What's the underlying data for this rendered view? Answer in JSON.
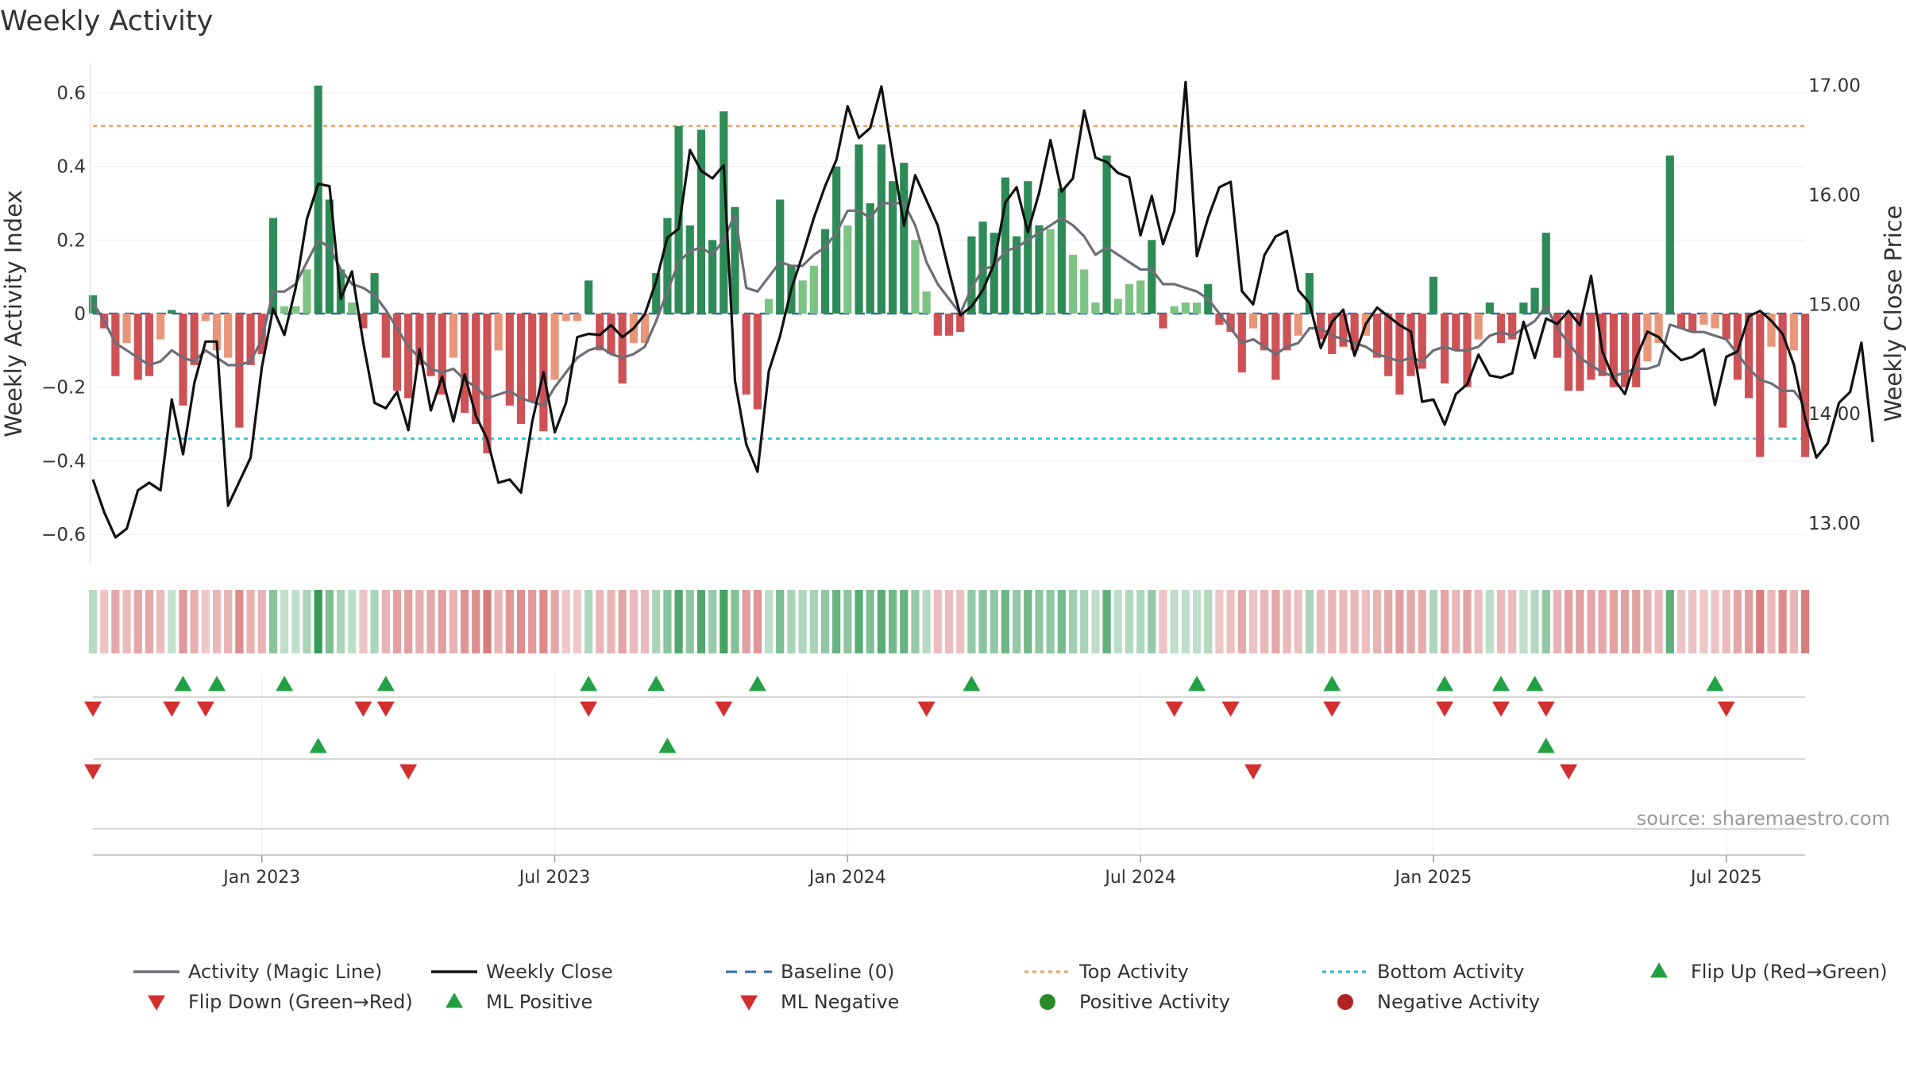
{
  "chart_data": {
    "type": "bar",
    "title": "Weekly Activity",
    "ylabel": "Weekly Activity Index",
    "y2label": "Weekly Close Price",
    "ylim": [
      -0.68,
      0.68
    ],
    "y2lim": [
      12.63,
      17.2
    ],
    "yticks": [
      {
        "value": 0.6,
        "label": "0.6"
      },
      {
        "value": 0.4,
        "label": "0.4"
      },
      {
        "value": 0.2,
        "label": "0.2"
      },
      {
        "value": 0,
        "label": "0"
      },
      {
        "value": -0.2,
        "label": "−0.2"
      },
      {
        "value": -0.4,
        "label": "−0.4"
      },
      {
        "value": -0.6,
        "label": "−0.6"
      }
    ],
    "y2ticks": [
      {
        "value": 17,
        "label": "17.00"
      },
      {
        "value": 16,
        "label": "16.00"
      },
      {
        "value": 15,
        "label": "15.00"
      },
      {
        "value": 14,
        "label": "14.00"
      },
      {
        "value": 13,
        "label": "13.00"
      }
    ],
    "xticks": [
      {
        "week": 15,
        "label": "Jan 2023"
      },
      {
        "week": 41,
        "label": "Jul 2023"
      },
      {
        "week": 67,
        "label": "Jan 2024"
      },
      {
        "week": 93,
        "label": "Jul 2024"
      },
      {
        "week": 119,
        "label": "Jan 2025"
      },
      {
        "week": 145,
        "label": "Jul 2025"
      }
    ],
    "top_activity": 0.51,
    "bottom_activity": -0.34,
    "baseline": 0,
    "activity": [
      0.05,
      -0.04,
      -0.17,
      -0.08,
      -0.18,
      -0.17,
      -0.07,
      0.01,
      -0.25,
      -0.14,
      -0.02,
      -0.1,
      -0.12,
      -0.31,
      -0.14,
      -0.11,
      0.26,
      0.02,
      0.02,
      0.12,
      0.62,
      0.31,
      0.12,
      0.03,
      -0.04,
      0.11,
      -0.12,
      -0.21,
      -0.23,
      -0.14,
      -0.17,
      -0.22,
      -0.12,
      -0.27,
      -0.3,
      -0.38,
      -0.1,
      -0.25,
      -0.3,
      -0.24,
      -0.32,
      -0.18,
      -0.02,
      -0.02,
      0.09,
      -0.1,
      -0.11,
      -0.19,
      -0.08,
      -0.08,
      0.11,
      0.26,
      0.51,
      0.24,
      0.5,
      0.2,
      0.55,
      0.29,
      -0.22,
      -0.26,
      0.04,
      0.31,
      0.13,
      0.09,
      0.13,
      0.23,
      0.4,
      0.24,
      0.46,
      0.3,
      0.46,
      0.36,
      0.41,
      0.2,
      0.06,
      -0.06,
      -0.06,
      -0.05,
      0.21,
      0.25,
      0.22,
      0.37,
      0.21,
      0.36,
      0.24,
      0.23,
      0.34,
      0.16,
      0.12,
      0.03,
      0.43,
      0.04,
      0.08,
      0.09,
      0.2,
      -0.04,
      0.02,
      0.03,
      0.03,
      0.08,
      -0.03,
      -0.05,
      -0.16,
      -0.04,
      -0.1,
      -0.18,
      -0.1,
      -0.06,
      0.11,
      -0.07,
      -0.11,
      -0.09,
      -0.1,
      -0.06,
      -0.12,
      -0.17,
      -0.22,
      -0.17,
      -0.15,
      0.1,
      -0.19,
      -0.1,
      -0.2,
      -0.07,
      0.03,
      -0.08,
      -0.07,
      0.03,
      0.07,
      0.22,
      -0.12,
      -0.21,
      -0.21,
      -0.18,
      -0.17,
      -0.2,
      -0.2,
      -0.2,
      -0.13,
      -0.08,
      0.43,
      -0.04,
      -0.05,
      -0.03,
      -0.04,
      -0.07,
      -0.18,
      -0.23,
      -0.39,
      -0.09,
      -0.31,
      -0.1,
      -0.39
    ],
    "magic_line": [
      0.03,
      -0.02,
      -0.08,
      -0.1,
      -0.12,
      -0.14,
      -0.13,
      -0.1,
      -0.12,
      -0.13,
      -0.1,
      -0.12,
      -0.14,
      -0.14,
      -0.13,
      -0.07,
      0.06,
      0.06,
      0.08,
      0.14,
      0.2,
      0.18,
      0.12,
      0.08,
      0.07,
      0.05,
      0.01,
      -0.04,
      -0.09,
      -0.12,
      -0.15,
      -0.16,
      -0.15,
      -0.18,
      -0.2,
      -0.23,
      -0.22,
      -0.21,
      -0.23,
      -0.24,
      -0.25,
      -0.2,
      -0.16,
      -0.12,
      -0.1,
      -0.09,
      -0.11,
      -0.12,
      -0.11,
      -0.09,
      -0.02,
      0.06,
      0.14,
      0.17,
      0.18,
      0.16,
      0.2,
      0.27,
      0.07,
      0.06,
      0.1,
      0.14,
      0.13,
      0.13,
      0.16,
      0.18,
      0.22,
      0.28,
      0.28,
      0.26,
      0.3,
      0.3,
      0.3,
      0.24,
      0.14,
      0.08,
      0.04,
      0.0,
      0.07,
      0.12,
      0.13,
      0.17,
      0.18,
      0.2,
      0.22,
      0.24,
      0.26,
      0.24,
      0.21,
      0.16,
      0.18,
      0.16,
      0.14,
      0.12,
      0.12,
      0.08,
      0.08,
      0.07,
      0.06,
      0.04,
      0.0,
      -0.04,
      -0.08,
      -0.07,
      -0.09,
      -0.11,
      -0.09,
      -0.08,
      -0.04,
      -0.04,
      -0.06,
      -0.07,
      -0.08,
      -0.09,
      -0.11,
      -0.12,
      -0.13,
      -0.12,
      -0.13,
      -0.1,
      -0.09,
      -0.1,
      -0.1,
      -0.09,
      -0.06,
      -0.05,
      -0.06,
      -0.04,
      -0.02,
      0.02,
      -0.04,
      -0.08,
      -0.12,
      -0.14,
      -0.16,
      -0.17,
      -0.16,
      -0.15,
      -0.15,
      -0.14,
      -0.03,
      -0.04,
      -0.05,
      -0.05,
      -0.06,
      -0.07,
      -0.11,
      -0.15,
      -0.18,
      -0.19,
      -0.21,
      -0.21,
      -0.25
    ],
    "weekly_close": [
      13.4,
      13.1,
      12.87,
      12.95,
      13.3,
      13.37,
      13.3,
      14.13,
      13.63,
      14.28,
      14.66,
      14.66,
      13.16,
      13.38,
      13.6,
      14.43,
      14.96,
      14.72,
      15.15,
      15.78,
      16.1,
      16.08,
      15.05,
      15.3,
      14.65,
      14.1,
      14.05,
      14.2,
      13.85,
      14.59,
      14.03,
      14.34,
      13.93,
      14.36,
      13.98,
      13.77,
      13.37,
      13.4,
      13.28,
      13.93,
      14.38,
      13.83,
      14.1,
      14.7,
      14.73,
      14.72,
      14.81,
      14.7,
      14.78,
      14.91,
      15.21,
      15.61,
      15.69,
      16.41,
      16.22,
      16.15,
      16.27,
      14.3,
      13.72,
      13.47,
      14.39,
      14.71,
      15.14,
      15.45,
      15.79,
      16.08,
      16.32,
      16.81,
      16.52,
      16.61,
      16.99,
      16.34,
      15.72,
      16.18,
      15.95,
      15.72,
      15.3,
      14.9,
      14.98,
      15.13,
      15.37,
      15.93,
      16.07,
      15.66,
      16.02,
      16.5,
      16.03,
      16.15,
      16.77,
      16.34,
      16.3,
      16.2,
      16.16,
      15.63,
      15.99,
      15.55,
      15.85,
      17.03,
      15.44,
      15.79,
      16.07,
      16.12,
      15.12,
      15.0,
      15.45,
      15.62,
      15.67,
      15.13,
      15.01,
      14.6,
      14.84,
      14.95,
      14.53,
      14.82,
      14.97,
      14.89,
      14.81,
      14.75,
      14.11,
      14.13,
      13.9,
      14.18,
      14.27,
      14.54,
      14.35,
      14.33,
      14.37,
      14.84,
      14.51,
      14.87,
      14.82,
      14.94,
      14.81,
      15.26,
      14.57,
      14.32,
      14.18,
      14.51,
      14.75,
      14.7,
      14.58,
      14.49,
      14.52,
      14.59,
      14.08,
      14.52,
      14.57,
      14.89,
      14.94,
      14.85,
      14.73,
      14.45,
      13.96,
      13.6,
      13.73,
      14.1,
      14.2,
      14.65,
      13.74
    ],
    "flip_up": [
      8,
      11,
      17,
      26,
      44,
      50,
      59,
      78,
      98,
      110,
      120,
      125,
      128,
      144
    ],
    "flip_down": [
      0,
      7,
      10,
      24,
      26,
      44,
      56,
      74,
      96,
      101,
      110,
      120,
      125,
      129,
      145
    ],
    "ml_positive": [
      20,
      51,
      129
    ],
    "ml_negative": [
      0,
      28,
      103,
      131
    ],
    "legend": [
      {
        "label": "Activity (Magic Line)",
        "kind": "line",
        "color": "#6e6e78"
      },
      {
        "label": "Weekly Close",
        "kind": "line",
        "color": "#111111"
      },
      {
        "label": "Baseline (0)",
        "kind": "dash",
        "color": "#2b6ea8"
      },
      {
        "label": "Top Activity",
        "kind": "dot",
        "color": "#e8a15f"
      },
      {
        "label": "Bottom Activity",
        "kind": "dot",
        "color": "#26bcd0"
      },
      {
        "label": "Flip Up (Red→Green)",
        "kind": "tri-up",
        "color": "#22a044"
      },
      {
        "label": "Flip Down (Green→Red)",
        "kind": "tri-down",
        "color": "#d32f2f"
      },
      {
        "label": "ML Positive",
        "kind": "tri-up",
        "color": "#22a044"
      },
      {
        "label": "ML Negative",
        "kind": "tri-down",
        "color": "#d32f2f"
      },
      {
        "label": "Positive Activity",
        "kind": "circle",
        "color": "#2a8a2a"
      },
      {
        "label": "Negative Activity",
        "kind": "circle",
        "color": "#b22222"
      }
    ],
    "source": "source: sharemaestro.com"
  },
  "colors": {
    "pos_strong": "#2e8b57",
    "pos_light": "#7dc383",
    "neg_strong": "#cd5256",
    "neg_light": "#e8967a",
    "magic_line": "#6e6e78",
    "close_line": "#111111",
    "top_line": "#e8a15f",
    "bottom_line": "#26bcd0",
    "baseline": "#2b6ea8",
    "up_marker": "#22a044",
    "down_marker": "#d32f2f"
  }
}
